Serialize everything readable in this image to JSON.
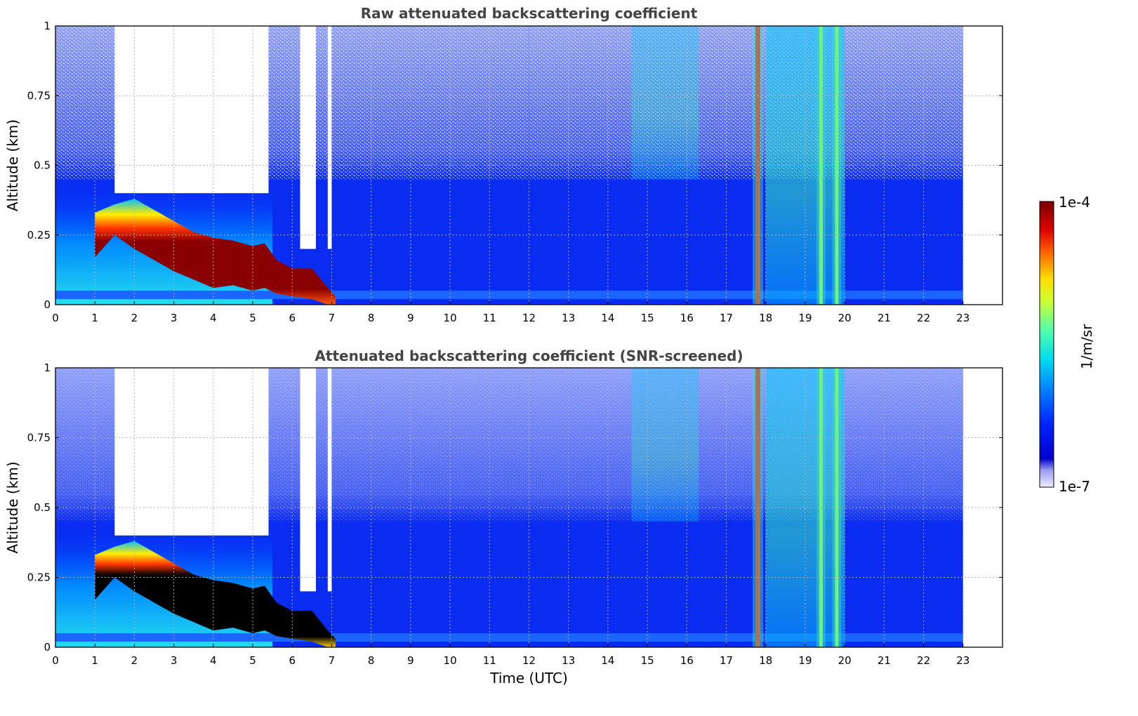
{
  "chart_data": [
    {
      "type": "heatmap",
      "title": "Raw attenuated backscattering coefficient",
      "xlabel": "",
      "ylabel": "Altitude (km)",
      "xlim": [
        0,
        24
      ],
      "ylim": [
        0,
        1
      ],
      "x_ticks": [
        "0",
        "1",
        "2",
        "3",
        "4",
        "5",
        "6",
        "7",
        "8",
        "9",
        "10",
        "11",
        "12",
        "13",
        "14",
        "15",
        "16",
        "17",
        "18",
        "19",
        "20",
        "21",
        "22",
        "23"
      ],
      "y_ticks": [
        "0",
        "0.25",
        "0.5",
        "0.75",
        "1"
      ],
      "grid": true,
      "data_end_time": 23,
      "fog_layer": {
        "times": [
          1.0,
          1.5,
          2.0,
          2.5,
          3.0,
          3.5,
          4.0,
          4.5,
          5.0,
          5.3,
          5.6,
          6.0,
          6.5,
          6.9,
          7.1
        ],
        "base_km": [
          0.17,
          0.25,
          0.2,
          0.16,
          0.12,
          0.09,
          0.06,
          0.07,
          0.05,
          0.06,
          0.04,
          0.03,
          0.02,
          0.0,
          0.0
        ],
        "top_km": [
          0.33,
          0.36,
          0.38,
          0.34,
          0.3,
          0.26,
          0.24,
          0.23,
          0.21,
          0.22,
          0.16,
          0.13,
          0.13,
          0.06,
          0.03
        ]
      },
      "cloud_columns_utc": [
        17.8,
        19.4,
        19.8
      ],
      "clear_gaps_utc": [
        [
          1.5,
          5.4
        ],
        [
          6.2,
          6.6
        ],
        [
          6.9,
          7.0
        ]
      ]
    },
    {
      "type": "heatmap",
      "title": "Attenuated backscattering coefficient (SNR-screened)",
      "xlabel": "Time (UTC)",
      "ylabel": "Altitude (km)",
      "xlim": [
        0,
        24
      ],
      "ylim": [
        0,
        1
      ],
      "x_ticks": [
        "0",
        "1",
        "2",
        "3",
        "4",
        "5",
        "6",
        "7",
        "8",
        "9",
        "10",
        "11",
        "12",
        "13",
        "14",
        "15",
        "16",
        "17",
        "18",
        "19",
        "20",
        "21",
        "22",
        "23"
      ],
      "y_ticks": [
        "0",
        "0.25",
        "0.5",
        "0.75",
        "1"
      ],
      "grid": true,
      "data_end_time": 23,
      "saturated_color": "#000000",
      "cloud_columns_utc": [
        17.8,
        19.4,
        19.8
      ]
    }
  ],
  "colorbar": {
    "label": "1/m/sr",
    "max_label": "1e-4",
    "min_label": "1e-7",
    "scale": "log",
    "colormap": "jet"
  }
}
